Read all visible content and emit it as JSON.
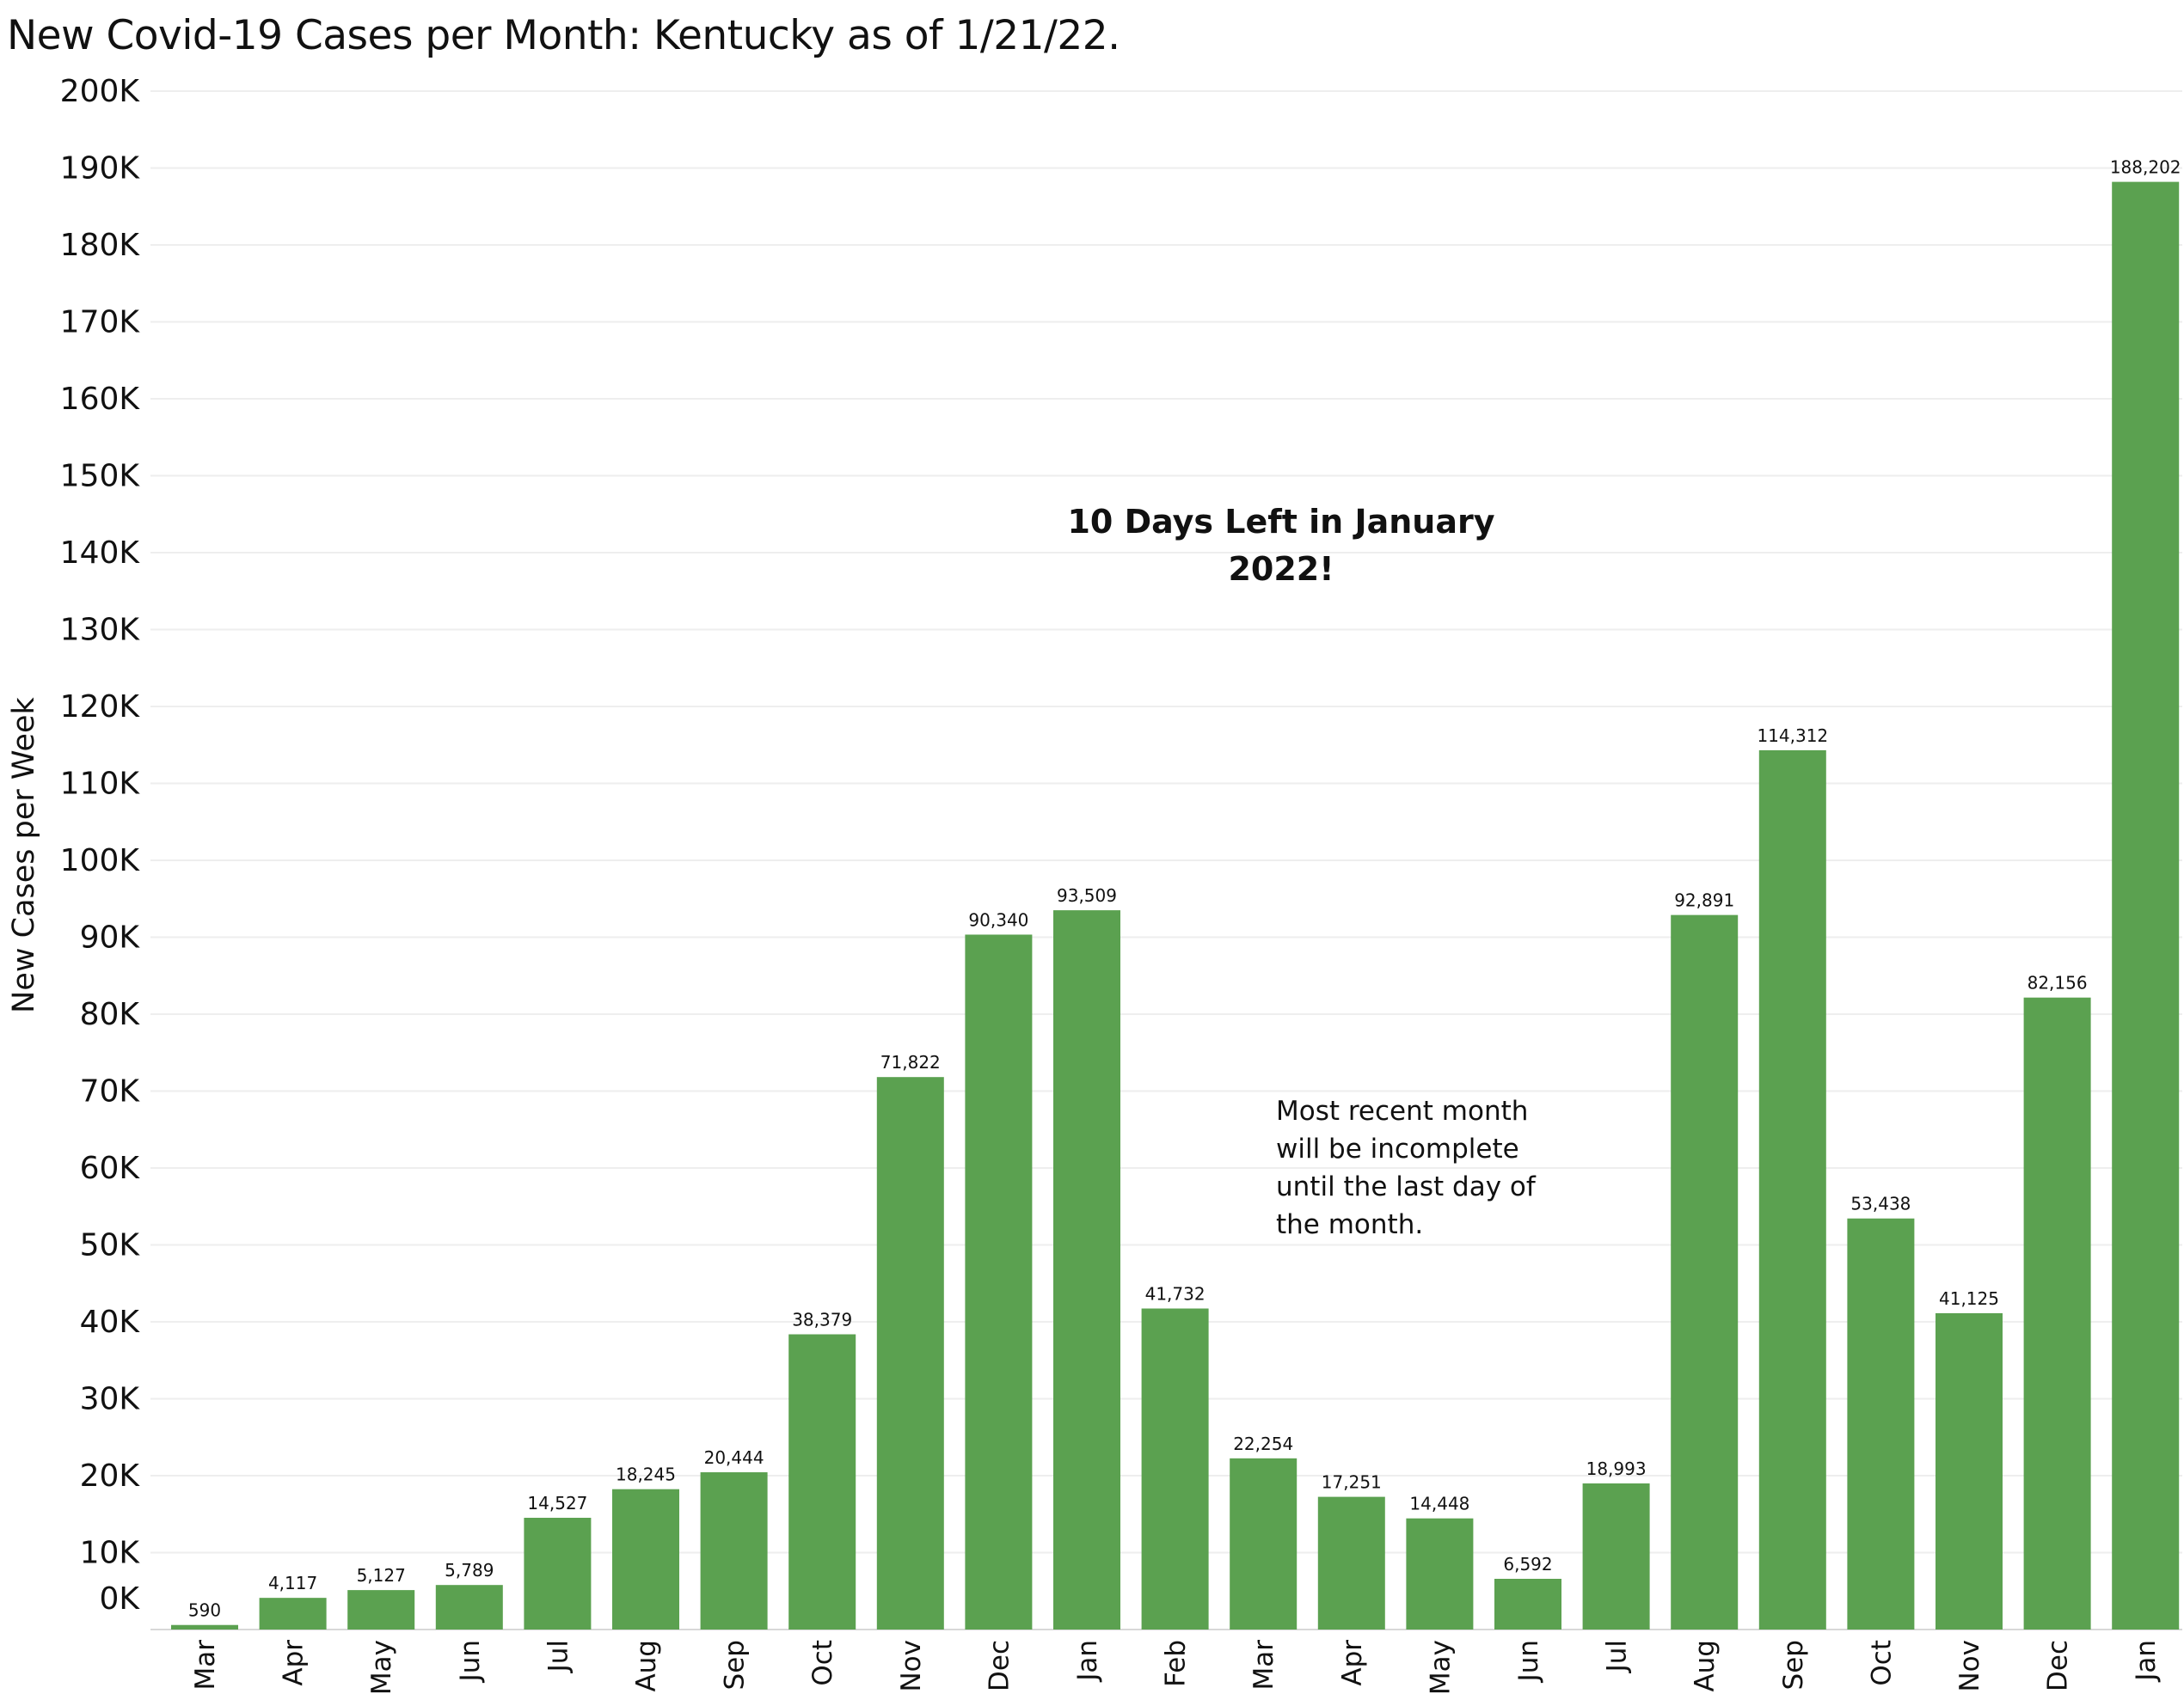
{
  "title": "New Covid-19 Cases per Month:  Kentucky as of 1/21/22.",
  "chart_data": {
    "type": "bar",
    "title": "New Covid-19 Cases per Month:  Kentucky as of 1/21/22.",
    "xlabel": "",
    "ylabel": "New Cases per Week",
    "ylim": [
      0,
      200000
    ],
    "y_ticks": [
      {
        "value": 0,
        "label": "0K"
      },
      {
        "value": 10000,
        "label": "10K"
      },
      {
        "value": 20000,
        "label": "20K"
      },
      {
        "value": 30000,
        "label": "30K"
      },
      {
        "value": 40000,
        "label": "40K"
      },
      {
        "value": 50000,
        "label": "50K"
      },
      {
        "value": 60000,
        "label": "60K"
      },
      {
        "value": 70000,
        "label": "70K"
      },
      {
        "value": 80000,
        "label": "80K"
      },
      {
        "value": 90000,
        "label": "90K"
      },
      {
        "value": 100000,
        "label": "100K"
      },
      {
        "value": 110000,
        "label": "110K"
      },
      {
        "value": 120000,
        "label": "120K"
      },
      {
        "value": 130000,
        "label": "130K"
      },
      {
        "value": 140000,
        "label": "140K"
      },
      {
        "value": 150000,
        "label": "150K"
      },
      {
        "value": 160000,
        "label": "160K"
      },
      {
        "value": 170000,
        "label": "170K"
      },
      {
        "value": 180000,
        "label": "180K"
      },
      {
        "value": 190000,
        "label": "190K"
      },
      {
        "value": 200000,
        "label": "200K"
      }
    ],
    "grid": true,
    "legend": "none",
    "bar_color": "#5ba150",
    "categories": [
      "Mar",
      "Apr",
      "May",
      "Jun",
      "Jul",
      "Aug",
      "Sep",
      "Oct",
      "Nov",
      "Dec",
      "Jan",
      "Feb",
      "Mar",
      "Apr",
      "May",
      "Jun",
      "Jul",
      "Aug",
      "Sep",
      "Oct",
      "Nov",
      "Dec",
      "Jan"
    ],
    "values": [
      590,
      4117,
      5127,
      5789,
      14527,
      18245,
      20444,
      38379,
      71822,
      90340,
      93509,
      41732,
      22254,
      17251,
      14448,
      6592,
      18993,
      92891,
      114312,
      53438,
      41125,
      82156,
      188202
    ],
    "value_labels": [
      "590",
      "4,117",
      "5,127",
      "5,789",
      "14,527",
      "18,245",
      "20,444",
      "38,379",
      "71,822",
      "90,340",
      "93,509",
      "41,732",
      "22,254",
      "17,251",
      "14,448",
      "6,592",
      "18,993",
      "92,891",
      "114,312",
      "53,438",
      "41,125",
      "82,156",
      "188,202"
    ],
    "annotations": [
      {
        "lines": [
          "10 Days Left in January",
          "2022!"
        ],
        "style": "bold"
      },
      {
        "lines": [
          "Most recent month",
          "will be incomplete",
          "until the last day of",
          "the month."
        ],
        "style": "note"
      }
    ]
  }
}
